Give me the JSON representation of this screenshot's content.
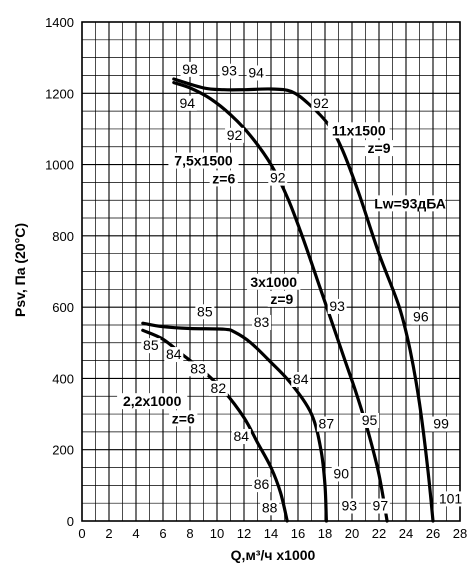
{
  "chart_data": {
    "type": "line",
    "xlabel": "Q,м³/ч x1000",
    "ylabel": "Psv, Па (20°С)",
    "xlim": [
      0,
      28
    ],
    "ylim": [
      0,
      1400
    ],
    "x_ticks": [
      0,
      2,
      4,
      6,
      8,
      10,
      12,
      14,
      16,
      18,
      20,
      22,
      24,
      26,
      28
    ],
    "y_ticks": [
      0,
      200,
      400,
      600,
      800,
      1000,
      1200,
      1400
    ],
    "grid": true,
    "minor_grid_x_step": 1,
    "minor_grid_y_step": 50,
    "series": [
      {
        "curve_label": "11x1500",
        "curve_z": "z=9",
        "points": [
          [
            6.8,
            1240
          ],
          [
            9,
            1215
          ],
          [
            10.5,
            1210
          ],
          [
            12,
            1210
          ],
          [
            14,
            1212
          ],
          [
            15.5,
            1205
          ],
          [
            16.8,
            1170
          ],
          [
            18.3,
            1110
          ],
          [
            19.3,
            1040
          ],
          [
            20.5,
            920
          ],
          [
            22,
            750
          ],
          [
            23.5,
            600
          ],
          [
            24.3,
            480
          ],
          [
            25,
            330
          ],
          [
            25.6,
            150
          ],
          [
            26,
            0
          ]
        ]
      },
      {
        "curve_label": "7,5x1500",
        "curve_z": "z=6",
        "points": [
          [
            6.8,
            1230
          ],
          [
            8,
            1215
          ],
          [
            9.5,
            1185
          ],
          [
            11,
            1140
          ],
          [
            12.5,
            1080
          ],
          [
            14,
            1000
          ],
          [
            15.3,
            900
          ],
          [
            16.4,
            790
          ],
          [
            17.4,
            680
          ],
          [
            18.4,
            570
          ],
          [
            19.3,
            470
          ],
          [
            20.3,
            360
          ],
          [
            21.2,
            250
          ],
          [
            22,
            130
          ],
          [
            22.6,
            0
          ]
        ]
      },
      {
        "curve_label": "3x1000",
        "curve_z": "z=9",
        "points": [
          [
            4.5,
            555
          ],
          [
            6,
            545
          ],
          [
            8,
            540
          ],
          [
            10.5,
            538
          ],
          [
            11.3,
            530
          ],
          [
            12.5,
            500
          ],
          [
            14,
            445
          ],
          [
            15.5,
            385
          ],
          [
            17,
            300
          ],
          [
            17.7,
            200
          ],
          [
            18,
            100
          ],
          [
            18.1,
            0
          ]
        ]
      },
      {
        "curve_label": "2,2x1000",
        "curve_z": "z=6",
        "points": [
          [
            4.5,
            535
          ],
          [
            6,
            510
          ],
          [
            7.5,
            465
          ],
          [
            9,
            420
          ],
          [
            10.5,
            365
          ],
          [
            12,
            290
          ],
          [
            13,
            220
          ],
          [
            14,
            150
          ],
          [
            14.7,
            80
          ],
          [
            15.2,
            0
          ]
        ]
      }
    ],
    "point_labels": [
      {
        "text": "98",
        "x": 8,
        "y": 1260
      },
      {
        "text": "93",
        "x": 10.9,
        "y": 1255
      },
      {
        "text": "94",
        "x": 12.9,
        "y": 1250
      },
      {
        "text": "94",
        "x": 7.8,
        "y": 1165
      },
      {
        "text": "92",
        "x": 17.7,
        "y": 1165
      },
      {
        "text": "92",
        "x": 11.3,
        "y": 1075
      },
      {
        "text": "92",
        "x": 14.5,
        "y": 955
      },
      {
        "text": "93",
        "x": 18.9,
        "y": 595
      },
      {
        "text": "96",
        "x": 25.1,
        "y": 565
      },
      {
        "text": "95",
        "x": 21.3,
        "y": 275
      },
      {
        "text": "99",
        "x": 26.6,
        "y": 265
      },
      {
        "text": "101",
        "x": 27.3,
        "y": 55
      },
      {
        "text": "97",
        "x": 22.1,
        "y": 35
      },
      {
        "text": "93",
        "x": 19.8,
        "y": 35
      },
      {
        "text": "90",
        "x": 19.2,
        "y": 125
      },
      {
        "text": "87",
        "x": 18.1,
        "y": 265
      },
      {
        "text": "84",
        "x": 16.2,
        "y": 390
      },
      {
        "text": "83",
        "x": 13.3,
        "y": 550
      },
      {
        "text": "85",
        "x": 9.1,
        "y": 580
      },
      {
        "text": "85",
        "x": 5.1,
        "y": 485
      },
      {
        "text": "84",
        "x": 6.8,
        "y": 460
      },
      {
        "text": "83",
        "x": 8.6,
        "y": 420
      },
      {
        "text": "82",
        "x": 10.1,
        "y": 365
      },
      {
        "text": "84",
        "x": 11.8,
        "y": 230
      },
      {
        "text": "86",
        "x": 13.3,
        "y": 95
      },
      {
        "text": "88",
        "x": 13.9,
        "y": 30
      }
    ],
    "annotations": [
      {
        "text": "11x1500",
        "x": 20.5,
        "y": 1085
      },
      {
        "text": "z=9",
        "x": 22,
        "y": 1035
      },
      {
        "text": "7,5x1500",
        "x": 9,
        "y": 1000
      },
      {
        "text": "z=6",
        "x": 10.5,
        "y": 950
      },
      {
        "text": "Lw=93дБА",
        "x": 24.3,
        "y": 880
      },
      {
        "text": "3x1000",
        "x": 14.2,
        "y": 660
      },
      {
        "text": "z=9",
        "x": 14.8,
        "y": 612
      },
      {
        "text": "2,2x1000",
        "x": 5.2,
        "y": 325
      },
      {
        "text": "z=6",
        "x": 7.5,
        "y": 277
      }
    ]
  }
}
